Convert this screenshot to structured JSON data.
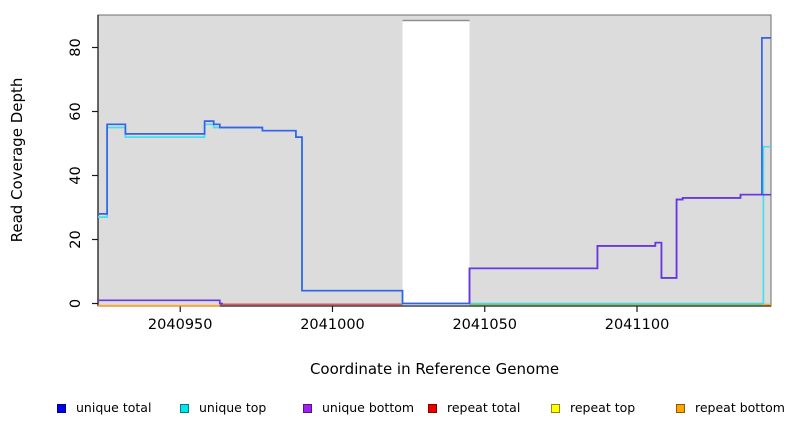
{
  "figure": {
    "x_axis_label": "Coordinate in Reference Genome",
    "y_axis_label": "Read Coverage Depth"
  },
  "legend": {
    "items": [
      {
        "label": "unique total",
        "color": "#0000ee"
      },
      {
        "label": "unique top",
        "color": "#00e5ee"
      },
      {
        "label": "unique bottom",
        "color": "#a020f0"
      },
      {
        "label": "repeat total",
        "color": "#ee0000"
      },
      {
        "label": "repeat top",
        "color": "#ffff00"
      },
      {
        "label": "repeat bottom",
        "color": "#ffa500"
      }
    ]
  },
  "chart_data": {
    "type": "line",
    "title": "",
    "xlabel": "Coordinate in Reference Genome",
    "ylabel": "Read Coverage Depth",
    "xlim": [
      2040923,
      2041144
    ],
    "ylim": [
      0,
      90
    ],
    "x_ticks": [
      2040950,
      2041000,
      2041050,
      2041100
    ],
    "y_ticks": [
      0,
      20,
      40,
      60,
      80
    ],
    "grid": false,
    "legend_position": "bottom",
    "background_color": "#dcdcdc",
    "gap_region": {
      "from": 2041023,
      "to": 2041045,
      "color": "#ffffff"
    },
    "series": [
      {
        "id": "repeat-total",
        "label": "repeat total",
        "color": "#ee0000",
        "line_color": "#e05560",
        "segments": [
          {
            "dy": 0.8,
            "points": [
              [
                2040963,
                0
              ],
              [
                2041023,
                0
              ]
            ]
          }
        ]
      },
      {
        "id": "repeat-bottom",
        "label": "repeat bottom",
        "color": "#ffa500",
        "line_color": "#ffa527",
        "segments": [
          {
            "dy": 2.2,
            "points": [
              [
                2040923,
                0
              ],
              [
                2040963,
                0
              ]
            ]
          },
          {
            "dy": 1.0,
            "points": [
              [
                2041141,
                0
              ],
              [
                2041144,
                0
              ]
            ]
          }
        ]
      },
      {
        "id": "unique-top",
        "label": "unique top",
        "color": "#00e5ee",
        "line_color": "#45e0e8",
        "segments": [
          {
            "dy": 0,
            "points": [
              [
                2040923,
                27
              ],
              [
                2040926,
                27
              ],
              [
                2040926,
                55
              ],
              [
                2040932,
                55
              ],
              [
                2040932,
                52
              ],
              [
                2040958,
                52
              ],
              [
                2040958,
                56
              ],
              [
                2040961,
                56
              ],
              [
                2040961,
                55
              ],
              [
                2040963,
                55
              ],
              [
                2040977,
                55
              ],
              [
                2040977,
                54
              ],
              [
                2040988,
                54
              ],
              [
                2040988,
                52
              ],
              [
                2040990,
                52
              ],
              [
                2040990,
                4
              ],
              [
                2041023,
                4
              ],
              [
                2041023,
                0
              ],
              [
                2041141.5,
                0
              ],
              [
                2041141.5,
                49
              ],
              [
                2041144,
                49
              ]
            ]
          }
        ]
      },
      {
        "id": "repeat-top",
        "label": "repeat top",
        "color": "#ffff00",
        "line_color": "#7cc47c",
        "segments": [
          {
            "dy": 1.0,
            "points": [
              [
                2041045,
                0
              ],
              [
                2041141,
                0
              ]
            ]
          }
        ]
      },
      {
        "id": "unique-total",
        "label": "unique total",
        "color": "#0000ee",
        "line_color": "#3562e8",
        "segments": [
          {
            "dy": 0,
            "points": [
              [
                2040923,
                28
              ],
              [
                2040926,
                28
              ],
              [
                2040926,
                56
              ],
              [
                2040932,
                56
              ],
              [
                2040932,
                53
              ],
              [
                2040958,
                53
              ],
              [
                2040958,
                57
              ],
              [
                2040961,
                57
              ],
              [
                2040961,
                56
              ],
              [
                2040963,
                56
              ],
              [
                2040963,
                55
              ],
              [
                2040977,
                55
              ],
              [
                2040977,
                54
              ],
              [
                2040988,
                54
              ],
              [
                2040988,
                52
              ],
              [
                2040990,
                52
              ],
              [
                2040990,
                4
              ],
              [
                2041023,
                4
              ],
              [
                2041023,
                0
              ],
              [
                2041045,
                0
              ],
              [
                2041045,
                11
              ],
              [
                2041087,
                11
              ],
              [
                2041087,
                18
              ],
              [
                2041106,
                18
              ],
              [
                2041106,
                19
              ],
              [
                2041108,
                19
              ],
              [
                2041108,
                8
              ],
              [
                2041113,
                8
              ],
              [
                2041113,
                32.5
              ],
              [
                2041115,
                32.5
              ],
              [
                2041115,
                33
              ],
              [
                2041134,
                33
              ],
              [
                2041134,
                34
              ],
              [
                2041141,
                34
              ],
              [
                2041141,
                83
              ],
              [
                2041144,
                83
              ]
            ]
          }
        ]
      },
      {
        "id": "unique-bottom",
        "label": "unique bottom",
        "color": "#a020f0",
        "line_color": "#6c35dd",
        "segments": [
          {
            "dy": 0,
            "points": [
              [
                2040923,
                1
              ],
              [
                2040963,
                1
              ],
              [
                2040963,
                0
              ],
              [
                2040964,
                0
              ]
            ]
          },
          {
            "dy": 0,
            "points": [
              [
                2041045,
                0
              ],
              [
                2041045,
                11
              ],
              [
                2041087,
                11
              ],
              [
                2041087,
                18
              ],
              [
                2041106,
                18
              ],
              [
                2041106,
                19
              ],
              [
                2041108,
                19
              ],
              [
                2041108,
                8
              ],
              [
                2041113,
                8
              ],
              [
                2041113,
                32.5
              ],
              [
                2041115,
                32.5
              ],
              [
                2041115,
                33
              ],
              [
                2041134,
                33
              ],
              [
                2041134,
                34
              ],
              [
                2041144,
                34
              ]
            ]
          }
        ]
      }
    ]
  }
}
